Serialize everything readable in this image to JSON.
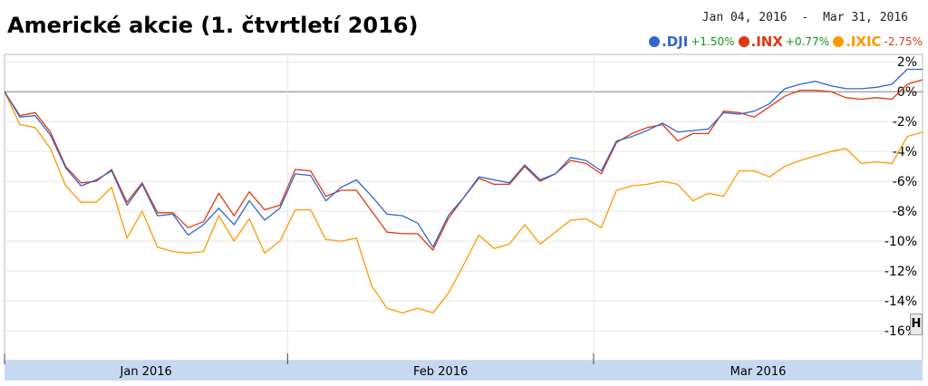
{
  "chart_data": {
    "type": "line",
    "title": "Americké akcie (1. čtvrtletí 2016)",
    "date_range": {
      "start": "Jan 04, 2016",
      "separator": "-",
      "end": "Mar 31, 2016"
    },
    "x": [
      "2016-01-04",
      "2016-01-05",
      "2016-01-06",
      "2016-01-07",
      "2016-01-08",
      "2016-01-11",
      "2016-01-12",
      "2016-01-13",
      "2016-01-14",
      "2016-01-15",
      "2016-01-19",
      "2016-01-20",
      "2016-01-21",
      "2016-01-22",
      "2016-01-25",
      "2016-01-26",
      "2016-01-27",
      "2016-01-28",
      "2016-01-29",
      "2016-02-01",
      "2016-02-02",
      "2016-02-03",
      "2016-02-04",
      "2016-02-05",
      "2016-02-08",
      "2016-02-09",
      "2016-02-10",
      "2016-02-11",
      "2016-02-12",
      "2016-02-16",
      "2016-02-17",
      "2016-02-18",
      "2016-02-19",
      "2016-02-22",
      "2016-02-23",
      "2016-02-24",
      "2016-02-25",
      "2016-02-26",
      "2016-02-29",
      "2016-03-01",
      "2016-03-02",
      "2016-03-03",
      "2016-03-04",
      "2016-03-07",
      "2016-03-08",
      "2016-03-09",
      "2016-03-10",
      "2016-03-11",
      "2016-03-14",
      "2016-03-15",
      "2016-03-16",
      "2016-03-17",
      "2016-03-18",
      "2016-03-21",
      "2016-03-22",
      "2016-03-23",
      "2016-03-24",
      "2016-03-28",
      "2016-03-29",
      "2016-03-30",
      "2016-03-31"
    ],
    "series": [
      {
        "name": ".DJI",
        "change": "+1.50%",
        "color": "#3366cc",
        "values": [
          0,
          -1.7,
          -1.6,
          -2.9,
          -5.1,
          -6.3,
          -5.9,
          -5.3,
          -7.6,
          -6.2,
          -8.3,
          -8.2,
          -9.6,
          -8.9,
          -7.8,
          -8.9,
          -7.3,
          -8.6,
          -7.8,
          -5.5,
          -5.6,
          -7.3,
          -6.4,
          -5.9,
          -7.0,
          -8.2,
          -8.3,
          -8.8,
          -10.4,
          -8.3,
          -7.1,
          -5.7,
          -5.9,
          -6.1,
          -4.9,
          -5.9,
          -5.5,
          -4.4,
          -4.6,
          -5.3,
          -3.3,
          -3.0,
          -2.6,
          -2.1,
          -2.7,
          -2.6,
          -2.5,
          -1.4,
          -1.5,
          -1.3,
          -0.8,
          0.2,
          0.5,
          0.7,
          0.4,
          0.2,
          0.2,
          0.3,
          0.5,
          1.5,
          1.5
        ]
      },
      {
        "name": ".INX",
        "change": "+0.77%",
        "color": "#dc3912",
        "values": [
          0,
          -1.6,
          -1.4,
          -2.7,
          -5.0,
          -6.1,
          -6.0,
          -5.2,
          -7.4,
          -6.1,
          -8.1,
          -8.1,
          -9.1,
          -8.7,
          -6.8,
          -8.3,
          -6.7,
          -7.9,
          -7.6,
          -5.2,
          -5.3,
          -7.0,
          -6.6,
          -6.6,
          -8.0,
          -9.4,
          -9.5,
          -9.5,
          -10.6,
          -8.5,
          -7.1,
          -5.8,
          -6.2,
          -6.2,
          -5.0,
          -6.0,
          -5.5,
          -4.6,
          -4.8,
          -5.5,
          -3.4,
          -2.8,
          -2.4,
          -2.2,
          -3.3,
          -2.8,
          -2.8,
          -1.3,
          -1.4,
          -1.7,
          -1.0,
          -0.3,
          0.1,
          0.1,
          0,
          -0.4,
          -0.5,
          -0.4,
          -0.5,
          0.5,
          0.8
        ]
      },
      {
        "name": ".IXIC",
        "change": "-2.75%",
        "color": "#ff9900",
        "values": [
          0,
          -2.2,
          -2.4,
          -3.8,
          -6.3,
          -7.4,
          -7.4,
          -6.4,
          -9.8,
          -8.0,
          -10.4,
          -10.7,
          -10.8,
          -10.7,
          -8.3,
          -10.0,
          -8.5,
          -10.8,
          -10.0,
          -7.9,
          -7.9,
          -9.9,
          -10.0,
          -9.8,
          -13.0,
          -14.5,
          -14.8,
          -14.5,
          -14.8,
          -13.5,
          -11.6,
          -9.6,
          -10.5,
          -10.2,
          -8.9,
          -10.2,
          -9.4,
          -8.6,
          -8.5,
          -9.1,
          -6.6,
          -6.3,
          -6.2,
          -6.0,
          -6.2,
          -7.3,
          -6.8,
          -7.0,
          -5.3,
          -5.3,
          -5.7,
          -5.0,
          -4.6,
          -4.3,
          -4.0,
          -3.8,
          -4.8,
          -4.7,
          -4.8,
          -3.0,
          -2.7
        ]
      }
    ],
    "yticks": [
      "2%",
      "0%",
      "-2%",
      "-4%",
      "-6%",
      "-8%",
      "-10%",
      "-12%",
      "-14%",
      "-16%"
    ],
    "ylim": [
      -18,
      2.5
    ],
    "month_labels": [
      "Jan 2016",
      "Feb 2016",
      "Mar 2016"
    ],
    "grid": true,
    "legend_position": "top-right"
  },
  "colors": {
    "axis_band": "#c6d9f1",
    "grid": "#e6e6e6",
    "zero_line": "#7f7f7f"
  },
  "icons": {
    "resize_handle": "H"
  }
}
